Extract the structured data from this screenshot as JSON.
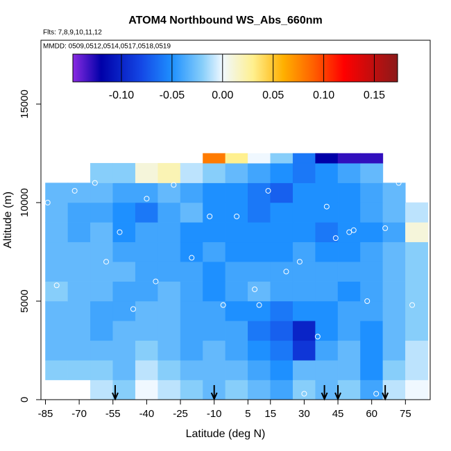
{
  "chart_data": {
    "type": "heatmap",
    "title": "ATOM4 Northbound WS_Abs_660nm",
    "subtitle": "Flts: 7,8,9,10,11,12",
    "annotation": "MMDD: 0509,0512,0514,0517,0518,0519",
    "x_label": "Latitude (deg N)",
    "y_label": "Altitude (m)",
    "xlim": [
      -87,
      86
    ],
    "xticks": [
      -85,
      -70,
      -55,
      -40,
      -25,
      -10,
      5,
      15,
      30,
      45,
      60,
      75
    ],
    "ylim": [
      0,
      18240
    ],
    "yticks": [
      0,
      5000,
      10000,
      15000
    ],
    "x_edges": [
      -85,
      -75,
      -65,
      -55,
      -45,
      -35,
      -25,
      -15,
      -5,
      5,
      15,
      25,
      35,
      45,
      55,
      65,
      75,
      85
    ],
    "y_edges": [
      0,
      1000,
      2000,
      3000,
      4000,
      5000,
      6000,
      7000,
      8000,
      9000,
      10000,
      11000,
      12000,
      12500
    ],
    "z": [
      [
        null,
        null,
        -0.01,
        -0.02,
        0.0,
        -0.01,
        -0.02,
        -0.03,
        -0.02,
        -0.03,
        -0.04,
        -0.02,
        -0.03,
        -0.02,
        -0.04,
        -0.01,
        0.0
      ],
      [
        -0.02,
        -0.02,
        -0.02,
        -0.03,
        -0.01,
        -0.02,
        -0.03,
        -0.03,
        -0.03,
        -0.04,
        -0.05,
        -0.03,
        -0.03,
        -0.03,
        -0.05,
        -0.02,
        -0.01
      ],
      [
        -0.03,
        -0.03,
        -0.03,
        -0.03,
        -0.02,
        -0.03,
        -0.04,
        -0.03,
        -0.04,
        -0.05,
        -0.06,
        -0.09,
        -0.04,
        -0.03,
        -0.05,
        -0.03,
        -0.01
      ],
      [
        -0.03,
        -0.03,
        -0.04,
        -0.03,
        -0.03,
        -0.03,
        -0.04,
        -0.04,
        -0.04,
        -0.06,
        -0.07,
        -0.1,
        -0.05,
        -0.04,
        -0.05,
        -0.03,
        -0.02
      ],
      [
        -0.03,
        -0.03,
        -0.04,
        -0.04,
        -0.03,
        -0.03,
        -0.04,
        -0.04,
        -0.05,
        -0.05,
        -0.06,
        -0.05,
        -0.05,
        -0.04,
        -0.04,
        -0.03,
        -0.02
      ],
      [
        -0.02,
        -0.03,
        -0.03,
        -0.04,
        -0.04,
        -0.03,
        -0.04,
        -0.05,
        -0.04,
        -0.03,
        -0.04,
        -0.04,
        -0.04,
        -0.05,
        -0.04,
        -0.03,
        -0.02
      ],
      [
        -0.03,
        -0.03,
        -0.03,
        -0.03,
        -0.04,
        -0.04,
        -0.04,
        -0.05,
        -0.04,
        -0.04,
        -0.04,
        -0.04,
        -0.04,
        -0.04,
        -0.04,
        -0.03,
        -0.02
      ],
      [
        -0.03,
        -0.03,
        -0.03,
        -0.04,
        -0.04,
        -0.04,
        -0.05,
        -0.04,
        -0.05,
        -0.05,
        -0.05,
        -0.04,
        -0.05,
        -0.05,
        -0.04,
        -0.03,
        -0.02
      ],
      [
        -0.03,
        -0.04,
        -0.03,
        -0.05,
        -0.04,
        -0.04,
        -0.05,
        -0.05,
        -0.05,
        -0.05,
        -0.05,
        -0.05,
        -0.06,
        -0.05,
        -0.05,
        -0.04,
        0.01
      ],
      [
        -0.03,
        -0.04,
        -0.04,
        -0.05,
        -0.06,
        -0.04,
        -0.03,
        -0.05,
        -0.05,
        -0.06,
        -0.05,
        -0.05,
        -0.05,
        -0.05,
        -0.04,
        -0.03,
        -0.01
      ],
      [
        -0.03,
        -0.03,
        -0.03,
        -0.04,
        -0.04,
        -0.03,
        -0.04,
        -0.05,
        -0.05,
        -0.06,
        -0.07,
        -0.05,
        -0.05,
        -0.05,
        -0.04,
        -0.03,
        null
      ],
      [
        null,
        null,
        -0.02,
        -0.02,
        0.01,
        0.02,
        -0.01,
        -0.02,
        -0.03,
        -0.04,
        -0.05,
        -0.06,
        -0.05,
        -0.04,
        -0.03,
        null,
        null
      ],
      [
        null,
        null,
        null,
        null,
        null,
        null,
        null,
        0.08,
        0.03,
        0.0,
        -0.02,
        -0.06,
        -0.12,
        -0.13,
        -0.13,
        null,
        null
      ]
    ],
    "colorscale": [
      [
        -0.148,
        "#8a2be2"
      ],
      [
        -0.12,
        "#0000a8"
      ],
      [
        -0.08,
        "#1448e6"
      ],
      [
        -0.05,
        "#1e90ff"
      ],
      [
        -0.02,
        "#87cefa"
      ],
      [
        0.0,
        "#f0f8ff"
      ],
      [
        0.03,
        "#fff08f"
      ],
      [
        0.06,
        "#ffb000"
      ],
      [
        0.09,
        "#ff6000"
      ],
      [
        0.12,
        "#ff0000"
      ],
      [
        0.173,
        "#8b1a1a"
      ]
    ],
    "colorbar_lim": [
      -0.148,
      0.173
    ],
    "colorbar_ticks": [
      {
        "value": -0.1,
        "label": "-0.10"
      },
      {
        "value": -0.05,
        "label": "-0.05"
      },
      {
        "value": 0.0,
        "label": "0.00"
      },
      {
        "value": 0.05,
        "label": "0.05"
      },
      {
        "value": 0.1,
        "label": "0.10"
      },
      {
        "value": 0.15,
        "label": "0.15"
      }
    ],
    "points": {
      "x": [
        -84,
        -72,
        -63,
        -52,
        -46,
        -36,
        -28,
        -20,
        -12,
        -6,
        0,
        8,
        14,
        22,
        28,
        36,
        44,
        52,
        58,
        66,
        72,
        78,
        -80,
        -40,
        10,
        40,
        62,
        -58,
        30,
        50
      ],
      "y": [
        10000,
        10600,
        11000,
        8500,
        4600,
        6000,
        10900,
        7200,
        9300,
        4800,
        9300,
        5600,
        10600,
        6500,
        7000,
        3200,
        8200,
        8600,
        5000,
        8700,
        11000,
        4800,
        5800,
        10200,
        4800,
        9800,
        300,
        7000,
        300,
        8500
      ]
    },
    "arrows_x": [
      -54,
      -10,
      39,
      45,
      66
    ]
  }
}
